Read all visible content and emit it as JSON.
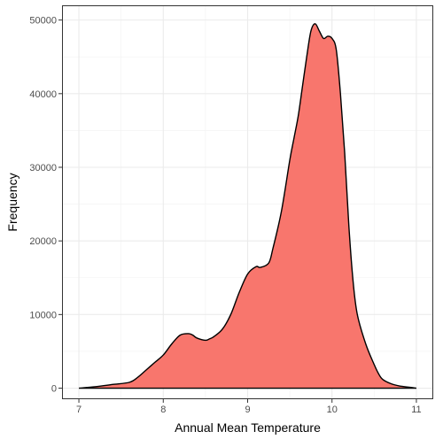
{
  "chart_data": {
    "type": "area",
    "title": "",
    "xlabel": "Annual Mean Temperature",
    "ylabel": "Frequency",
    "xlim": [
      6.8,
      11.2
    ],
    "ylim": [
      -1500,
      52000
    ],
    "x_ticks": [
      7,
      8,
      9,
      10,
      11
    ],
    "y_ticks": [
      0,
      10000,
      20000,
      30000,
      40000,
      50000
    ],
    "x_tick_labels": [
      "7",
      "8",
      "9",
      "10",
      "11"
    ],
    "y_tick_labels": [
      "0",
      "10000",
      "20000",
      "30000",
      "40000",
      "50000"
    ],
    "grid": true,
    "legend": "none",
    "fill_color": "#F8766D",
    "line_color": "#000000",
    "series": [
      {
        "x": [
          7.0,
          7.2,
          7.4,
          7.6,
          7.7,
          7.8,
          7.9,
          8.0,
          8.1,
          8.2,
          8.3,
          8.35,
          8.4,
          8.5,
          8.55,
          8.6,
          8.7,
          8.8,
          8.9,
          9.0,
          9.1,
          9.15,
          9.25,
          9.3,
          9.4,
          9.5,
          9.55,
          9.6,
          9.65,
          9.7,
          9.75,
          9.8,
          9.85,
          9.9,
          9.95,
          10.0,
          10.05,
          10.1,
          10.15,
          10.2,
          10.25,
          10.3,
          10.4,
          10.5,
          10.55,
          10.6,
          10.7,
          10.8,
          10.9,
          11.0
        ],
        "y": [
          0,
          200,
          500,
          800,
          1500,
          2500,
          3500,
          4500,
          6000,
          7200,
          7400,
          7200,
          6800,
          6500,
          6700,
          7000,
          8000,
          10000,
          13000,
          15500,
          16500,
          16400,
          17000,
          19000,
          24000,
          31000,
          34000,
          37000,
          41000,
          45000,
          48500,
          49500,
          48500,
          47500,
          47800,
          47500,
          46000,
          40000,
          32000,
          22000,
          14500,
          10000,
          6000,
          3200,
          2000,
          1200,
          600,
          300,
          150,
          0
        ]
      }
    ]
  }
}
